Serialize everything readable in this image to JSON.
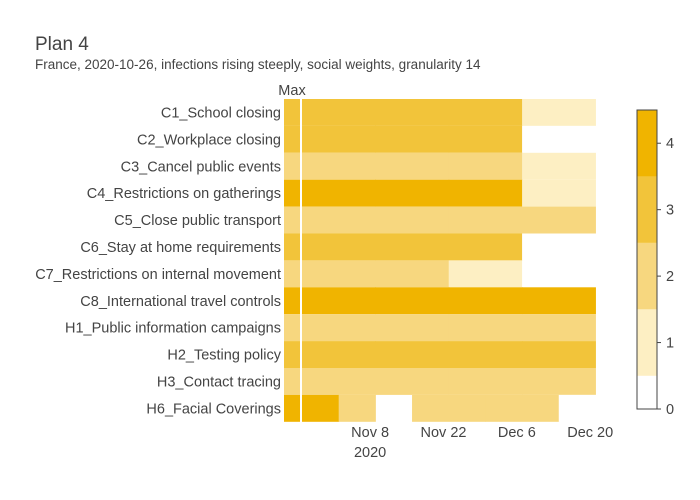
{
  "chart_data": {
    "type": "heatmap",
    "title": "Plan 4",
    "subtitle": "France, 2020-10-26, infections rising steeply, social weights, granularity 14",
    "max_column_label": "Max",
    "x_ticks": [
      {
        "label": "Nov 8",
        "sublabel": "2020"
      },
      {
        "label": "Nov 22",
        "sublabel": ""
      },
      {
        "label": "Dec 6",
        "sublabel": ""
      },
      {
        "label": "Dec 20",
        "sublabel": ""
      }
    ],
    "periods": [
      "2020-10-26",
      "2020-11-09",
      "2020-11-23",
      "2020-12-07"
    ],
    "rows": [
      {
        "label": "C1_School closing",
        "max": 3,
        "values": [
          3,
          3,
          3,
          1
        ]
      },
      {
        "label": "C2_Workplace closing",
        "max": 3,
        "values": [
          3,
          3,
          3,
          0
        ]
      },
      {
        "label": "C3_Cancel public events",
        "max": 2,
        "values": [
          2,
          2,
          2,
          1
        ]
      },
      {
        "label": "C4_Restrictions on gatherings",
        "max": 4,
        "values": [
          4,
          4,
          4,
          1
        ]
      },
      {
        "label": "C5_Close public transport",
        "max": 2,
        "values": [
          2,
          2,
          2,
          2
        ]
      },
      {
        "label": "C6_Stay at home requirements",
        "max": 3,
        "values": [
          3,
          3,
          3,
          0
        ]
      },
      {
        "label": "C7_Restrictions on internal movement",
        "max": 2,
        "values": [
          2,
          2,
          1,
          0
        ]
      },
      {
        "label": "C8_International travel controls",
        "max": 4,
        "values": [
          4,
          4,
          4,
          4
        ]
      },
      {
        "label": "H1_Public information campaigns",
        "max": 2,
        "values": [
          2,
          2,
          2,
          2
        ]
      },
      {
        "label": "H2_Testing policy",
        "max": 3,
        "values": [
          3,
          3,
          3,
          3
        ]
      },
      {
        "label": "H3_Contact tracing",
        "max": 2,
        "values": [
          2,
          2,
          2,
          2
        ]
      },
      {
        "label": "H6_Facial Coverings",
        "max": 4,
        "values": [
          4,
          2,
          2,
          0
        ]
      }
    ],
    "first_period_partial": [
      false,
      false,
      false,
      false,
      false,
      false,
      false,
      false,
      false,
      false,
      false,
      true
    ],
    "colorscale": [
      "#ffffff",
      "#fdefc3",
      "#f7d77f",
      "#f2c43a",
      "#f0b400"
    ],
    "colorbar_ticks": [
      "0",
      "1",
      "2",
      "3",
      "4"
    ],
    "zmin": 0,
    "zmax": 4.5,
    "legend": "colorbar right"
  }
}
